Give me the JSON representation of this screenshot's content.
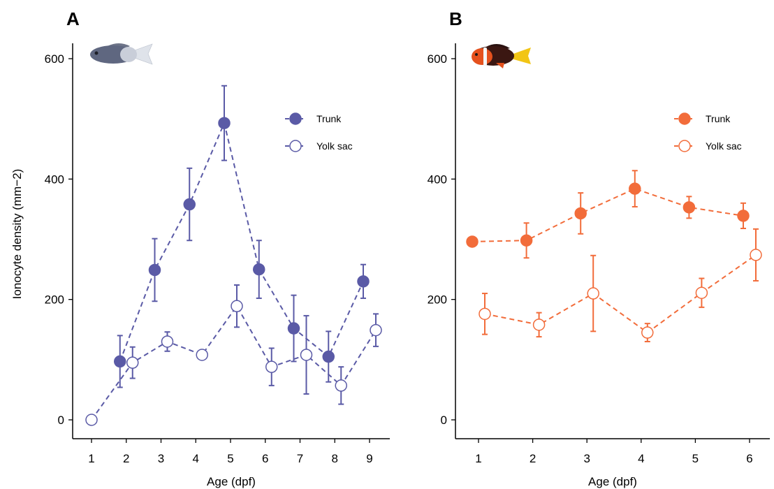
{
  "chart_data": [
    {
      "type": "line",
      "panel_label": "A",
      "xlabel": "Age (dpf)",
      "ylabel": "Ionocyte density (mm−2)",
      "xlim": [
        0.5,
        9.5
      ],
      "ylim": [
        -30,
        620
      ],
      "xticks": [
        1,
        2,
        3,
        4,
        5,
        6,
        7,
        8,
        9
      ],
      "yticks": [
        0,
        200,
        400,
        600
      ],
      "color": "#5a5aa6",
      "legend_position": "top-right",
      "series": [
        {
          "name": "Trunk",
          "marker": "filled-circle",
          "x": [
            2,
            3,
            4,
            5,
            6,
            7,
            8,
            9
          ],
          "y": [
            97,
            249,
            358,
            493,
            250,
            152,
            105,
            230
          ],
          "err": [
            43,
            52,
            60,
            62,
            48,
            55,
            42,
            28
          ]
        },
        {
          "name": "Yolk sac",
          "marker": "open-circle",
          "x": [
            1,
            2,
            3,
            4,
            5,
            6,
            7,
            8,
            9
          ],
          "y": [
            0,
            95,
            130,
            108,
            189,
            88,
            108,
            57,
            149
          ],
          "err": [
            0,
            26,
            16,
            6,
            35,
            31,
            65,
            31,
            27
          ]
        }
      ]
    },
    {
      "type": "line",
      "panel_label": "B",
      "xlabel": "Age (dpf)",
      "ylabel": "",
      "xlim": [
        0.65,
        6.45
      ],
      "ylim": [
        -30,
        620
      ],
      "xticks": [
        1,
        2,
        3,
        4,
        5,
        6
      ],
      "yticks": [
        0,
        200,
        400,
        600
      ],
      "color": "#f26c3a",
      "legend_position": "top-right",
      "series": [
        {
          "name": "Trunk",
          "marker": "filled-circle",
          "x": [
            1,
            2,
            3,
            4,
            5,
            6
          ],
          "y": [
            296,
            298,
            343,
            384,
            353,
            339
          ],
          "err": [
            0,
            29,
            34,
            30,
            18,
            21
          ]
        },
        {
          "name": "Yolk sac",
          "marker": "open-circle",
          "x": [
            1,
            2,
            3,
            4,
            5,
            6
          ],
          "y": [
            176,
            158,
            210,
            145,
            211,
            274
          ],
          "err": [
            34,
            20,
            63,
            15,
            24,
            43
          ]
        }
      ]
    }
  ]
}
